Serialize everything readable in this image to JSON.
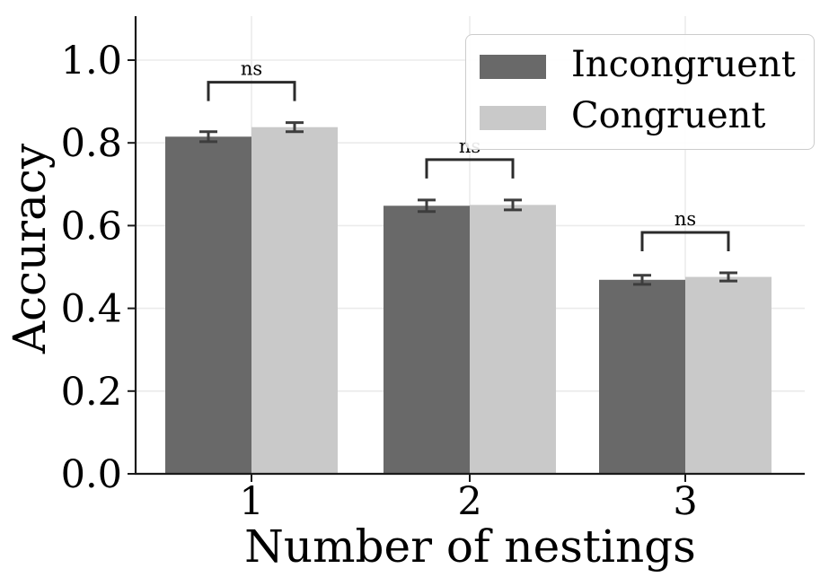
{
  "figure": {
    "background": "#ffffff",
    "description": "Grouped bar chart with error bars comparing accuracy for incongruent vs congruent conditions across number of nestings, with ns significance brackets"
  },
  "chart_data": {
    "type": "bar",
    "title": "",
    "xlabel": "Number of nestings",
    "ylabel": "Accuracy",
    "categories": [
      "1",
      "2",
      "3"
    ],
    "series": [
      {
        "name": "Incongruent",
        "color": "#696969",
        "values": [
          0.815,
          0.648,
          0.469
        ],
        "errors": [
          0.012,
          0.014,
          0.011
        ]
      },
      {
        "name": "Congruent",
        "color": "#c9c9c9",
        "values": [
          0.838,
          0.65,
          0.476
        ],
        "errors": [
          0.011,
          0.012,
          0.01
        ]
      }
    ],
    "significance_annotations": [
      {
        "category": "1",
        "label": "ns"
      },
      {
        "category": "2",
        "label": "ns"
      },
      {
        "category": "3",
        "label": "ns"
      }
    ],
    "ylim": [
      0.0,
      1.1
    ],
    "yticks": [
      0.0,
      0.2,
      0.4,
      0.6,
      0.8,
      1.0
    ],
    "ytick_labels": [
      "0.0",
      "0.2",
      "0.4",
      "0.6",
      "0.8",
      "1.0"
    ],
    "grid": "on",
    "legend_position": "upper right",
    "colors": {
      "grid": "#ebebeb",
      "spine": "#1a1a1a",
      "error_bar": "#3d3d3d",
      "bracket": "#2b2b2b",
      "text": "#000000"
    }
  }
}
